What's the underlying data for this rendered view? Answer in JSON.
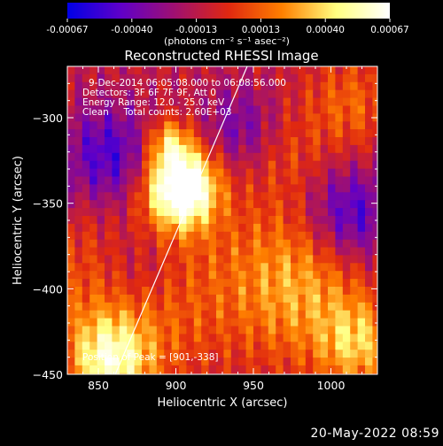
{
  "colorbar": {
    "ticks": [
      "-0.00067",
      "-0.00040",
      "-0.00013",
      "0.00013",
      "0.00040",
      "0.00067"
    ],
    "unit_label": "(photons cm⁻² s⁻¹ asec⁻²)",
    "range": [
      -0.00067,
      0.00067
    ]
  },
  "annotations": {
    "time_range": "9-Dec-2014 06:05:08.000 to 06:08:56.000",
    "detectors": "Detectors: 3F 6F 7F 9F, Att 0",
    "energy": "Energy Range: 12.0 - 25.0 keV",
    "clean": "Clean     Total counts: 2.60E+03",
    "peak": "Position of Peak = [901,-338]"
  },
  "timestamp": "20-May-2022 08:59",
  "chart_data": {
    "type": "heatmap",
    "title": "Reconstructed RHESSI Image",
    "xlabel": "Heliocentric X (arcsec)",
    "ylabel": "Heliocentric Y (arcsec)",
    "xlim": [
      830,
      1030
    ],
    "ylim": [
      -450,
      -270
    ],
    "xticks": [
      850,
      900,
      950,
      1000
    ],
    "xtick_labels": [
      "850",
      "900",
      "950",
      "1000"
    ],
    "yticks": [
      -300,
      -350,
      -400,
      -450
    ],
    "ytick_labels": [
      "−300",
      "−350",
      "−400",
      "−450"
    ],
    "peak": [
      901,
      -338
    ],
    "limb": [
      [
        860,
        -452
      ],
      [
        946,
        -270
      ]
    ],
    "colormap": [
      "#0000e6",
      "#6000c8",
      "#a01070",
      "#e02810",
      "#ff8000",
      "#ffff80",
      "#ffffff"
    ]
  }
}
